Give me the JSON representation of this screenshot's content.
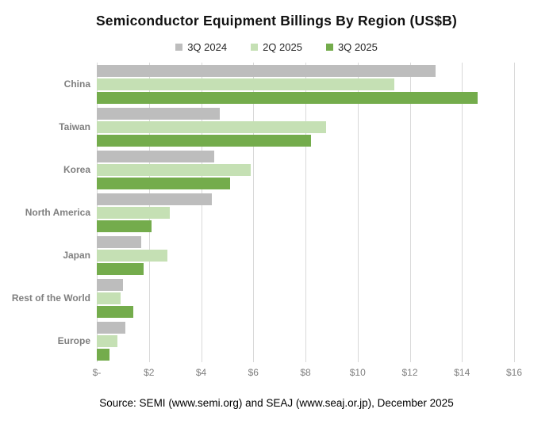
{
  "title": "Semiconductor Equipment Billings By Region (US$B)",
  "source_note": "Source: SEMI (www.semi.org) and SEAJ (www.seaj.or.jp), December 2025",
  "colors": {
    "series": [
      "#bdbdbd",
      "#c5e0b4",
      "#74ac4c"
    ],
    "gridline": "#d9d9d9",
    "category_label": "#7f7f7f",
    "tick_label": "#7f7f7f",
    "title": "#111111"
  },
  "chart_data": {
    "type": "bar",
    "orientation": "horizontal",
    "title": "Semiconductor Equipment Billings By Region (US$B)",
    "categories": [
      "China",
      "Taiwan",
      "Korea",
      "North America",
      "Japan",
      "Rest of the World",
      "Europe"
    ],
    "series": [
      {
        "name": "3Q 2024",
        "color": "#bdbdbd",
        "values": [
          13.0,
          4.7,
          4.5,
          4.4,
          1.7,
          1.0,
          1.1
        ]
      },
      {
        "name": "2Q 2025",
        "color": "#c5e0b4",
        "values": [
          11.4,
          8.8,
          5.9,
          2.8,
          2.7,
          0.9,
          0.8
        ]
      },
      {
        "name": "3Q 2025",
        "color": "#74ac4c",
        "values": [
          14.6,
          8.2,
          5.1,
          2.1,
          1.8,
          1.4,
          0.5
        ]
      }
    ],
    "xlabel": "",
    "ylabel": "",
    "xlim": [
      0,
      16
    ],
    "x_tick_labels": [
      "$-",
      "$2",
      "$4",
      "$6",
      "$8",
      "$10",
      "$12",
      "$14",
      "$16"
    ],
    "grid": true,
    "legend_position": "top"
  }
}
